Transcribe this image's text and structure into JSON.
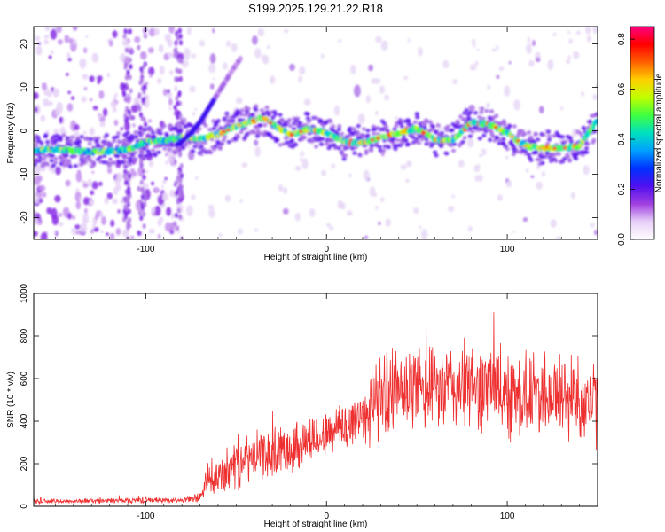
{
  "figure": {
    "title": "S199.2025.129.21.22.R18"
  },
  "chart_data": [
    {
      "type": "heatmap",
      "xlabel": "Height of straight line (km)",
      "ylabel": "Frequency (Hz)",
      "xlim": [
        -162,
        150
      ],
      "ylim": [
        -25,
        24
      ],
      "x_ticks": [
        -100,
        0,
        100
      ],
      "y_ticks": [
        -20,
        -10,
        0,
        10,
        20
      ],
      "colorbar": {
        "label": "Normalized spectral amplitude",
        "range": [
          0,
          0.85
        ],
        "ticks": [
          0.0,
          0.2,
          0.4,
          0.6,
          0.8
        ],
        "colors": [
          "#ffffff",
          "#e8d0f8",
          "#a040e0",
          "#5010f0",
          "#0030ff",
          "#00a0ff",
          "#00e0c0",
          "#40ff40",
          "#c0ff00",
          "#ffd000",
          "#ff6000",
          "#ff0000",
          "#ff0080"
        ]
      },
      "ridge": {
        "x": [
          -160,
          -150,
          -140,
          -130,
          -120,
          -110,
          -100,
          -90,
          -80,
          -70,
          -60,
          -50,
          -40,
          -35,
          -30,
          -20,
          -10,
          0,
          10,
          20,
          30,
          40,
          50,
          60,
          70,
          80,
          90,
          100,
          110,
          120,
          130,
          140,
          150
        ],
        "y": [
          -4.5,
          -4.2,
          -4.6,
          -4.8,
          -4.7,
          -4.3,
          -2.5,
          -2.2,
          -1.5,
          -1.8,
          -0.8,
          1.0,
          2.5,
          3.0,
          1.5,
          -1.0,
          0.5,
          -0.5,
          -2.5,
          -2.8,
          -1.5,
          -0.5,
          0.5,
          -2.0,
          -2.2,
          2.0,
          1.5,
          -0.5,
          -3.5,
          -4.0,
          -4.0,
          -3.5,
          2.5
        ]
      },
      "branch": {
        "x": [
          -82,
          -76,
          -70,
          -64,
          -58,
          -52,
          -47
        ],
        "y": [
          -3,
          -1,
          2,
          6,
          10,
          14,
          17
        ]
      }
    },
    {
      "type": "line",
      "xlabel": "Height of straight line (km)",
      "ylabel": "SNR (10 * v/v)",
      "xlim": [
        -162,
        150
      ],
      "ylim": [
        0,
        1000
      ],
      "x_ticks": [
        -100,
        0,
        100
      ],
      "y_ticks": [
        0,
        200,
        400,
        600,
        800,
        1000
      ],
      "series": [
        {
          "color": "#ee3030",
          "envelope": {
            "x": [
              -162,
              -140,
              -120,
              -100,
              -80,
              -70,
              -65,
              -60,
              -50,
              -40,
              -30,
              -20,
              -10,
              0,
              10,
              20,
              30,
              40,
              50,
              60,
              70,
              80,
              90,
              100,
              110,
              120,
              130,
              140,
              150
            ],
            "mean": [
              22,
              24,
              26,
              30,
              28,
              40,
              90,
              130,
              200,
              230,
              250,
              280,
              310,
              340,
              370,
              430,
              520,
              540,
              530,
              550,
              560,
              560,
              560,
              540,
              520,
              530,
              520,
              510,
              480
            ],
            "spread": [
              10,
              10,
              12,
              15,
              10,
              25,
              60,
              90,
              120,
              110,
              110,
              120,
              120,
              100,
              130,
              150,
              200,
              180,
              200,
              180,
              210,
              200,
              200,
              220,
              200,
              200,
              220,
              200,
              200
            ]
          }
        }
      ]
    }
  ]
}
